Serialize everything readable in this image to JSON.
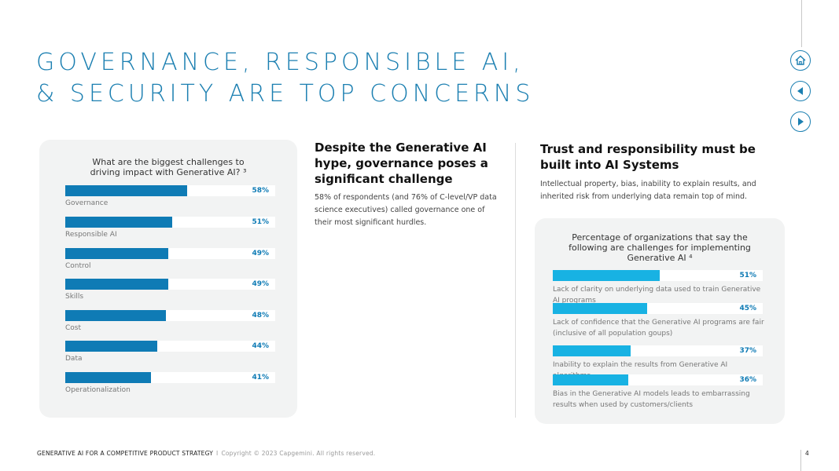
{
  "page": {
    "title_line1": "GOVERNANCE, RESPONSIBLE AI,",
    "title_line2": "& SECURITY ARE TOP CONCERNS",
    "page_number": "4"
  },
  "colors": {
    "accent": "#1b7fb1",
    "bar_left": "#0f7bb5",
    "bar_right": "#18b2e3",
    "panel_bg": "#f2f3f3"
  },
  "nav": {
    "home_icon": "home-icon",
    "prev_icon": "previous-icon",
    "next_icon": "next-icon"
  },
  "middle": {
    "heading": "Despite the Generative AI hype, governance poses a significant challenge",
    "body": "58% of respondents (and 76% of C-level/VP data science executives) called governance one of their most significant hurdles."
  },
  "right": {
    "heading": "Trust and responsibility must be built into AI Systems",
    "body": "Intellectual property, bias, inability to explain results, and inherited risk from underlying data remain top of mind."
  },
  "footer": {
    "left": "GENERATIVE AI FOR A COMPETITIVE PRODUCT STRATEGY",
    "separator": "I",
    "copyright": "Copyright © 2023 Capgemini.  All rights reserved."
  },
  "chart_data": [
    {
      "type": "bar",
      "orientation": "horizontal",
      "title": "What are the biggest challenges to driving impact with Generative AI? ³",
      "categories": [
        "Governance",
        "Responsible AI",
        "Control",
        "Skills",
        "Cost",
        "Data",
        "Operationalization"
      ],
      "values": [
        58,
        51,
        49,
        49,
        48,
        44,
        41
      ],
      "value_labels": [
        "58%",
        "51%",
        "49%",
        "49%",
        "48%",
        "44%",
        "41%"
      ],
      "xlim": [
        0,
        100
      ],
      "unit": "%"
    },
    {
      "type": "bar",
      "orientation": "horizontal",
      "title": "Percentage of organizations that say the following are challenges for implementing Generative AI ⁴",
      "categories": [
        "Lack of clarity on underlying data used to train Generative AI programs",
        "Lack of confidence that the Generative AI programs are fair (inclusive of all population goups)",
        "Inability to explain the results from Generative AI algorithms",
        "Bias in the Generative AI models leads to embarrassing results when used by customers/clients"
      ],
      "values": [
        51,
        45,
        37,
        36
      ],
      "value_labels": [
        "51%",
        "45%",
        "37%",
        "36%"
      ],
      "xlim": [
        0,
        100
      ],
      "unit": "%"
    }
  ]
}
